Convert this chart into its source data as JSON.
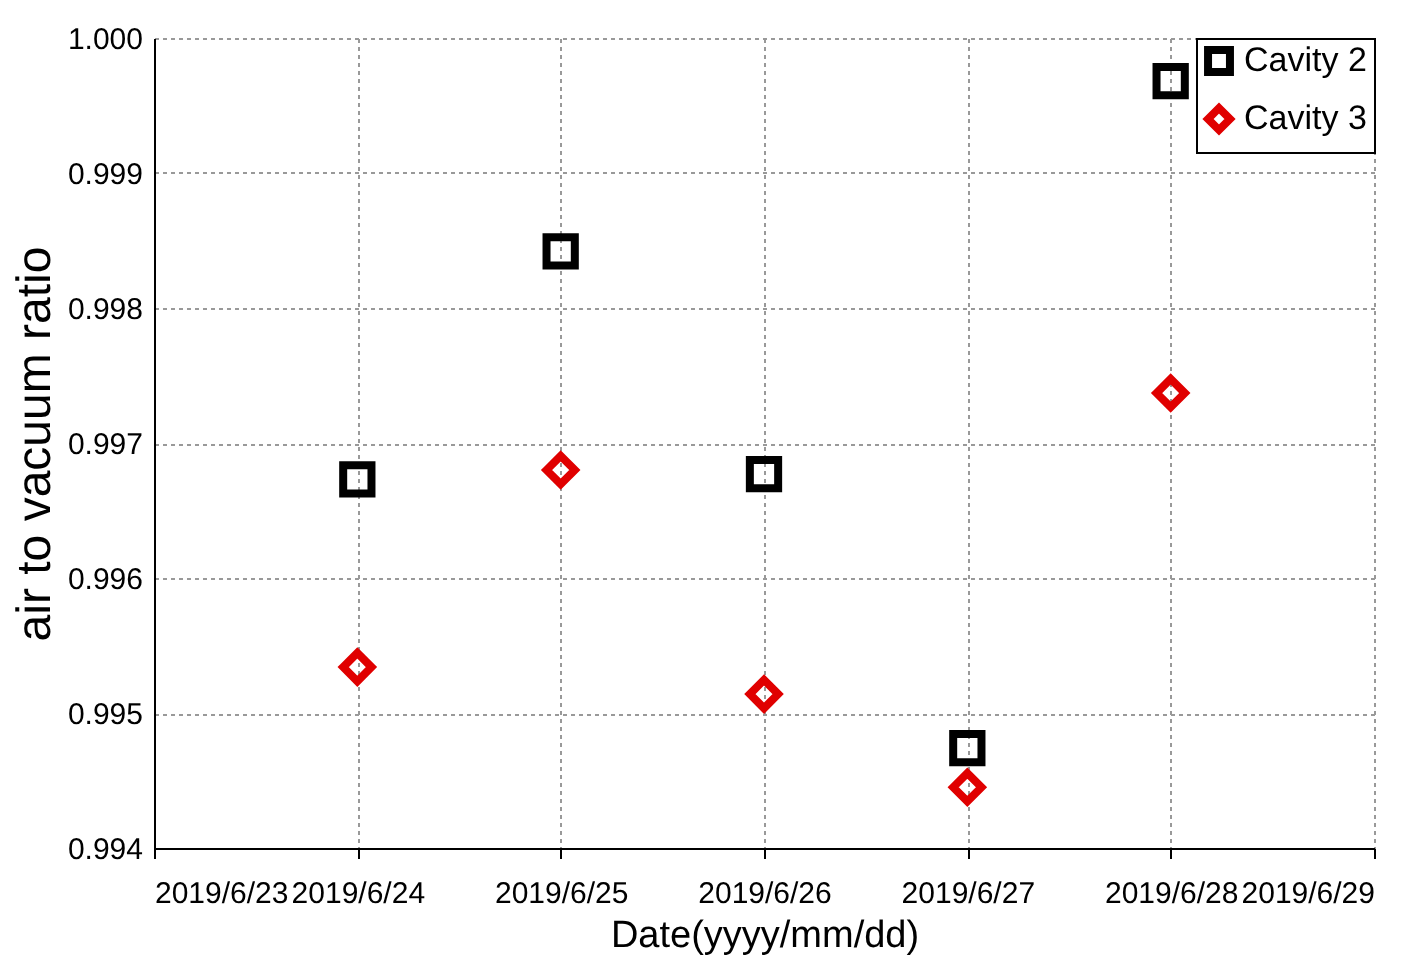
{
  "chart_data": {
    "type": "scatter",
    "xlabel": "Date(yyyy/mm/dd)",
    "ylabel": "air to vacuum ratio",
    "x": [
      "2019-06-24",
      "2019-06-25",
      "2019-06-26",
      "2019-06-27",
      "2019-06-28"
    ],
    "series": [
      {
        "name": "Cavity 2",
        "color": "#000000",
        "marker": "square",
        "values": [
          0.99673,
          0.99842,
          0.99677,
          0.99474,
          0.99968
        ]
      },
      {
        "name": "Cavity 3",
        "color": "#e00000",
        "marker": "diamond",
        "values": [
          0.99534,
          0.9968,
          0.99514,
          0.99445,
          0.99737
        ]
      }
    ],
    "xlim": [
      "2019-06-23",
      "2019-06-29"
    ],
    "xticks": [
      {
        "value": "2019-06-23",
        "label": "2019/6/23"
      },
      {
        "value": "2019-06-24",
        "label": "2019/6/24"
      },
      {
        "value": "2019-06-25",
        "label": "2019/6/25"
      },
      {
        "value": "2019-06-26",
        "label": "2019/6/26"
      },
      {
        "value": "2019-06-27",
        "label": "2019/6/27"
      },
      {
        "value": "2019-06-28",
        "label": "2019/6/28"
      },
      {
        "value": "2019-06-29",
        "label": "2019/6/29"
      }
    ],
    "ylim": [
      0.994,
      1.0
    ],
    "yticks": [
      {
        "value": 0.994,
        "label": "0.994"
      },
      {
        "value": 0.995,
        "label": "0.995"
      },
      {
        "value": 0.996,
        "label": "0.996"
      },
      {
        "value": 0.997,
        "label": "0.997"
      },
      {
        "value": 0.998,
        "label": "0.998"
      },
      {
        "value": 0.999,
        "label": "0.999"
      },
      {
        "value": 1.0,
        "label": "1.000"
      }
    ],
    "grid": true,
    "legend": "top right"
  }
}
